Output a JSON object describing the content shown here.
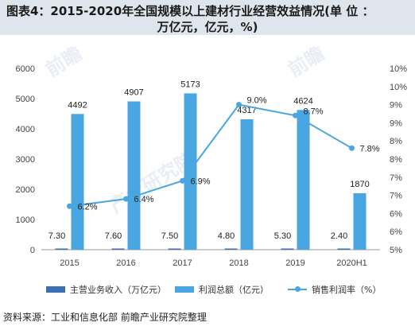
{
  "header": {
    "title_line1": "图表4：2015-2020年全国规模以上建材行业经营效益情况(单 位 ：",
    "title_line2": "万亿元，亿元，%)"
  },
  "source": "资料来源：工业和信息化部 前瞻产业研究院整理",
  "watermark": "前瞻产业研究院",
  "colors": {
    "revenue": "#3d6fb5",
    "profit": "#4aa6e0",
    "margin": "#4aa6e0",
    "axis": "#444444",
    "grid": "#cfcfcf"
  },
  "chart_data": {
    "type": "bar",
    "categories": [
      "2015",
      "2016",
      "2017",
      "2018",
      "2019",
      "2020H1"
    ],
    "series": [
      {
        "name": "主营业务收入（万亿元）",
        "type": "bar",
        "axis": "left",
        "values": [
          7.3,
          7.6,
          7.5,
          4.8,
          5.3,
          2.4
        ],
        "labels": [
          "7.30",
          "7.60",
          "7.50",
          "4.80",
          "5.30",
          "2.40"
        ]
      },
      {
        "name": "利润总额（亿元）",
        "type": "bar",
        "axis": "left",
        "values": [
          4492,
          4907,
          5173,
          4317,
          4624,
          1870
        ],
        "labels": [
          "4492",
          "4907",
          "5173",
          "4317",
          "4624",
          "1870"
        ]
      },
      {
        "name": "销售利润率（%）",
        "type": "line",
        "axis": "right",
        "values": [
          6.2,
          6.4,
          6.9,
          9.0,
          8.7,
          7.8
        ],
        "labels": [
          "6.2%",
          "6.4%",
          "6.9%",
          "9.0%",
          "8.7%",
          "7.8%"
        ]
      }
    ],
    "y_left": {
      "min": 0,
      "max": 6000,
      "ticks": [
        0,
        1000,
        2000,
        3000,
        4000,
        5000,
        6000
      ],
      "tick_labels": [
        "0",
        "1000",
        "2000",
        "3000",
        "4000",
        "5000",
        "6000"
      ]
    },
    "y_right": {
      "min": 5,
      "max": 10,
      "ticks": [
        5,
        5.5,
        6,
        6.5,
        7,
        7.5,
        8,
        8.5,
        9,
        9.5,
        10
      ],
      "tick_labels": [
        "5%",
        "6%",
        "6%",
        "7%",
        "7%",
        "8%",
        "8%",
        "9%",
        "9%",
        "10%",
        "10%"
      ]
    },
    "grid": false,
    "legend": "bottom"
  }
}
